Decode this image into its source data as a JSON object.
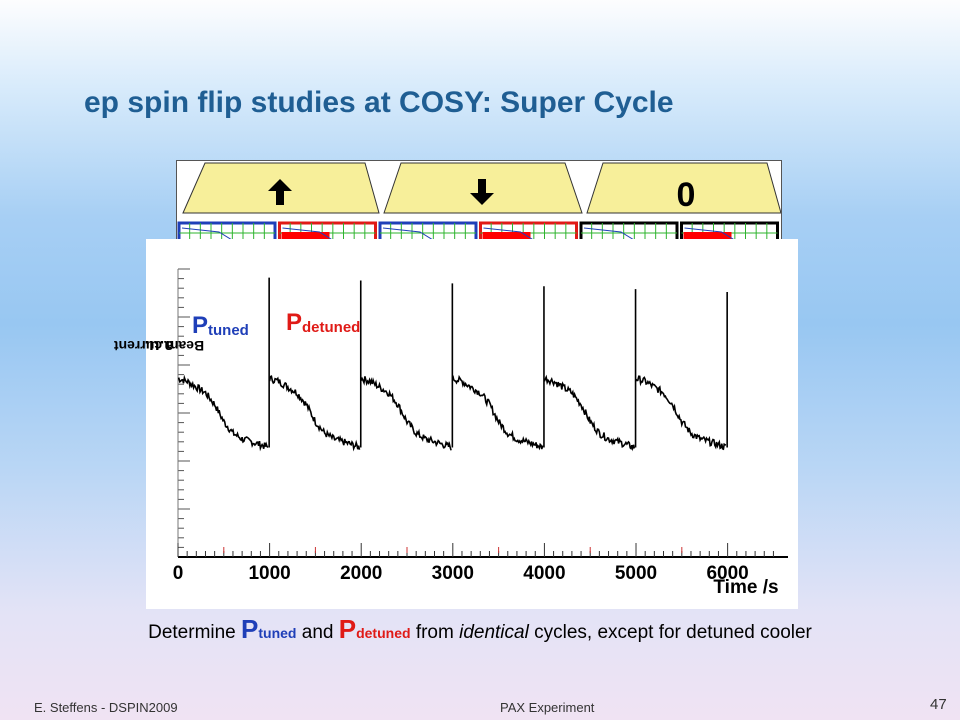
{
  "slide": {
    "title": "ep spin flip studies at COSY: Super Cycle",
    "footer_left": "E. Steffens  -  DSPIN2009",
    "footer_center": "PAX Experiment",
    "page_number": "47"
  },
  "cycle_strip": {
    "segments": [
      {
        "symbol": "up-arrow-icon",
        "label": ""
      },
      {
        "symbol": "down-arrow-icon",
        "label": ""
      },
      {
        "symbol": "zero",
        "label": "0"
      }
    ],
    "boxes": [
      {
        "state": "tuned",
        "border": "#1f3fb8"
      },
      {
        "state": "detuned",
        "border": "#e01a16"
      },
      {
        "state": "tuned",
        "border": "#1f3fb8"
      },
      {
        "state": "detuned",
        "border": "#e01a16"
      },
      {
        "state": "tuned",
        "border": "#000000"
      },
      {
        "state": "detuned",
        "border": "#000000"
      }
    ],
    "colors": {
      "trapezoid_fill": "#f7ef9a",
      "detuned_block": "#ff0000",
      "grid": "#2db42d",
      "trace": "#1f3fb8"
    }
  },
  "labels": {
    "p_tuned_main": "P",
    "p_tuned_sub": "tuned",
    "p_detuned_main": "P",
    "p_detuned_sub": "detuned",
    "beam_current": "Beam current",
    "beam_unit": "a.u."
  },
  "caption": {
    "text1": "Determine ",
    "p": "P",
    "tuned": "tuned",
    "and": " and ",
    "detuned": "detuned",
    "text2": " from ",
    "identical": "identical",
    "text3": " cycles, except for detuned cooler"
  },
  "chart_data": {
    "type": "line",
    "title": "",
    "xlabel": "Time /s",
    "ylabel": "Beam current a.u.",
    "xlim": [
      0,
      6550
    ],
    "ylim": [
      0,
      1
    ],
    "x_ticks": [
      0,
      1000,
      2000,
      3000,
      4000,
      5000,
      6000
    ],
    "cycles": [
      {
        "start": 0,
        "end": 1000,
        "state": "tuned"
      },
      {
        "start": 1000,
        "end": 2000,
        "state": "detuned"
      },
      {
        "start": 2000,
        "end": 3000,
        "state": "tuned"
      },
      {
        "start": 3000,
        "end": 4000,
        "state": "detuned"
      },
      {
        "start": 4000,
        "end": 5000,
        "state": "tuned"
      },
      {
        "start": 5000,
        "end": 6000,
        "state": "detuned"
      }
    ],
    "series": [
      {
        "x": [
          0,
          100,
          200,
          300,
          400,
          500,
          600,
          700,
          800,
          900,
          990
        ],
        "y": [
          0.62,
          0.61,
          0.59,
          0.57,
          0.53,
          0.47,
          0.43,
          0.41,
          0.4,
          0.39,
          0.38
        ]
      }
    ],
    "spike_peak": 0.97
  }
}
